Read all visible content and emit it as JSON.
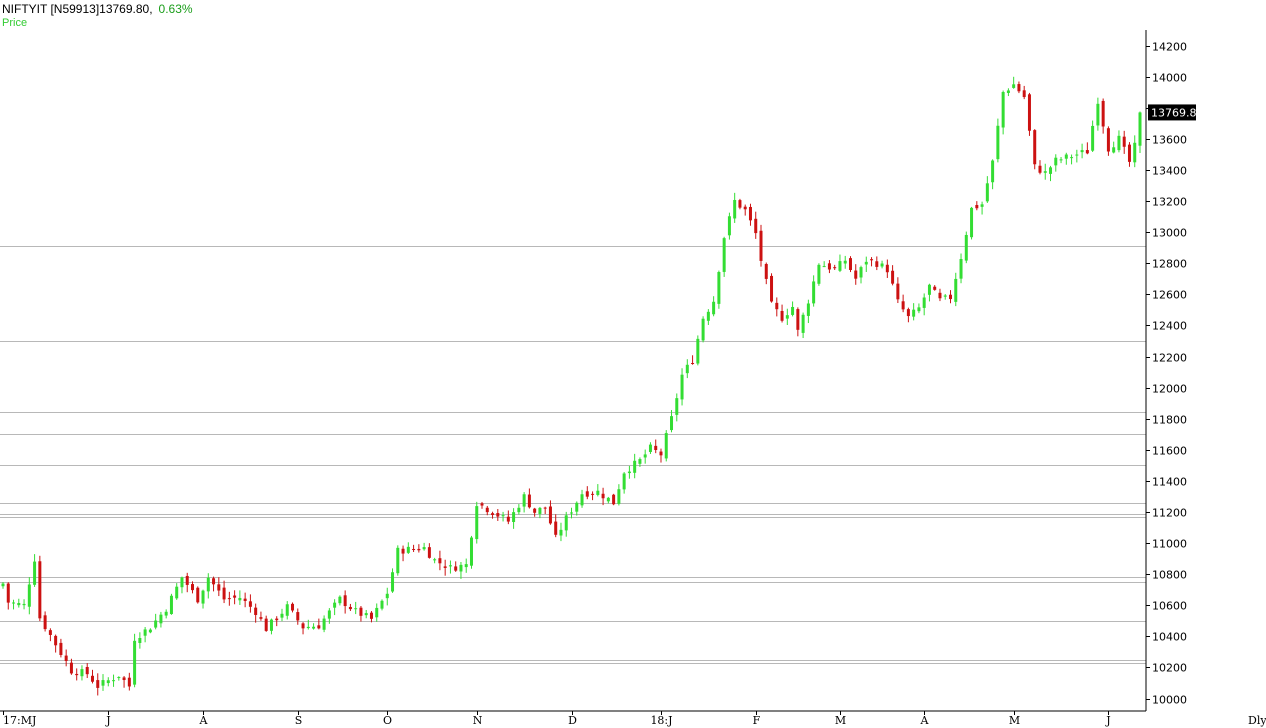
{
  "header": {
    "symbol": "NIFTYIT [N59913]",
    "last": "13769.80,",
    "change": "0.63%",
    "series_label": "Price"
  },
  "period_label": "Dly",
  "colors": {
    "up": "#33dd33",
    "down": "#cc1111",
    "hline": "#b8b8b8",
    "axis": "#000000"
  },
  "chart_data": {
    "type": "candlestick",
    "title": "",
    "ylabel": "",
    "xlabel": "",
    "ylim": [
      9920,
      14300
    ],
    "yticks": [
      10000,
      10200,
      10400,
      10600,
      10800,
      11000,
      11200,
      11400,
      11600,
      11800,
      12000,
      12200,
      12400,
      12600,
      12800,
      13000,
      13200,
      13400,
      13600,
      13800,
      14000,
      14200
    ],
    "x_tick_labels": [
      {
        "label": "17:MJ",
        "i": 0
      },
      {
        "label": "J",
        "i": 20
      },
      {
        "label": "A",
        "i": 38
      },
      {
        "label": "S",
        "i": 56
      },
      {
        "label": "O",
        "i": 73
      },
      {
        "label": "N",
        "i": 90
      },
      {
        "label": "D",
        "i": 108
      },
      {
        "label": "18:J",
        "i": 125
      },
      {
        "label": "F",
        "i": 143
      },
      {
        "label": "M",
        "i": 159
      },
      {
        "label": "A",
        "i": 175
      },
      {
        "label": "M",
        "i": 192
      },
      {
        "label": "J",
        "i": 210
      }
    ],
    "horizontal_lines": [
      12910,
      12300,
      11840,
      11700,
      11500,
      11260,
      11190,
      11170,
      10780,
      10750,
      10500,
      10250,
      10230
    ],
    "last_price": 13769.8,
    "anchors": [
      [
        0,
        10740
      ],
      [
        1,
        10620
      ],
      [
        4,
        10600
      ],
      [
        6,
        10900
      ],
      [
        7,
        10520
      ],
      [
        10,
        10350
      ],
      [
        13,
        10180
      ],
      [
        16,
        10160
      ],
      [
        18,
        10080
      ],
      [
        22,
        10150
      ],
      [
        24,
        10080
      ],
      [
        25,
        10390
      ],
      [
        28,
        10460
      ],
      [
        31,
        10580
      ],
      [
        34,
        10780
      ],
      [
        37,
        10640
      ],
      [
        39,
        10780
      ],
      [
        42,
        10640
      ],
      [
        45,
        10650
      ],
      [
        48,
        10560
      ],
      [
        50,
        10450
      ],
      [
        54,
        10590
      ],
      [
        57,
        10460
      ],
      [
        60,
        10470
      ],
      [
        64,
        10640
      ],
      [
        67,
        10560
      ],
      [
        70,
        10510
      ],
      [
        73,
        10680
      ],
      [
        75,
        10950
      ],
      [
        77,
        10960
      ],
      [
        80,
        10970
      ],
      [
        82,
        10890
      ],
      [
        85,
        10840
      ],
      [
        88,
        10860
      ],
      [
        90,
        11260
      ],
      [
        93,
        11200
      ],
      [
        96,
        11140
      ],
      [
        99,
        11300
      ],
      [
        101,
        11200
      ],
      [
        103,
        11230
      ],
      [
        105,
        11030
      ],
      [
        107,
        11160
      ],
      [
        110,
        11320
      ],
      [
        113,
        11330
      ],
      [
        116,
        11260
      ],
      [
        118,
        11460
      ],
      [
        121,
        11530
      ],
      [
        123,
        11610
      ],
      [
        125,
        11570
      ],
      [
        127,
        11800
      ],
      [
        129,
        12080
      ],
      [
        131,
        12180
      ],
      [
        133,
        12450
      ],
      [
        135,
        12560
      ],
      [
        137,
        12970
      ],
      [
        139,
        13200
      ],
      [
        141,
        13140
      ],
      [
        143,
        12990
      ],
      [
        144,
        12820
      ],
      [
        146,
        12530
      ],
      [
        148,
        12450
      ],
      [
        150,
        12520
      ],
      [
        151,
        12360
      ],
      [
        153,
        12560
      ],
      [
        155,
        12800
      ],
      [
        158,
        12760
      ],
      [
        160,
        12820
      ],
      [
        162,
        12700
      ],
      [
        164,
        12820
      ],
      [
        166,
        12800
      ],
      [
        168,
        12760
      ],
      [
        170,
        12550
      ],
      [
        172,
        12450
      ],
      [
        174,
        12510
      ],
      [
        176,
        12650
      ],
      [
        178,
        12560
      ],
      [
        180,
        12580
      ],
      [
        182,
        12840
      ],
      [
        184,
        13150
      ],
      [
        186,
        13180
      ],
      [
        188,
        13450
      ],
      [
        190,
        13900
      ],
      [
        192,
        13950
      ],
      [
        194,
        13870
      ],
      [
        196,
        13420
      ],
      [
        198,
        13380
      ],
      [
        200,
        13460
      ],
      [
        202,
        13480
      ],
      [
        204,
        13500
      ],
      [
        206,
        13520
      ],
      [
        208,
        13850
      ],
      [
        210,
        13540
      ],
      [
        212,
        13600
      ],
      [
        214,
        13450
      ],
      [
        215,
        13550
      ],
      [
        216,
        13769.8
      ]
    ]
  }
}
